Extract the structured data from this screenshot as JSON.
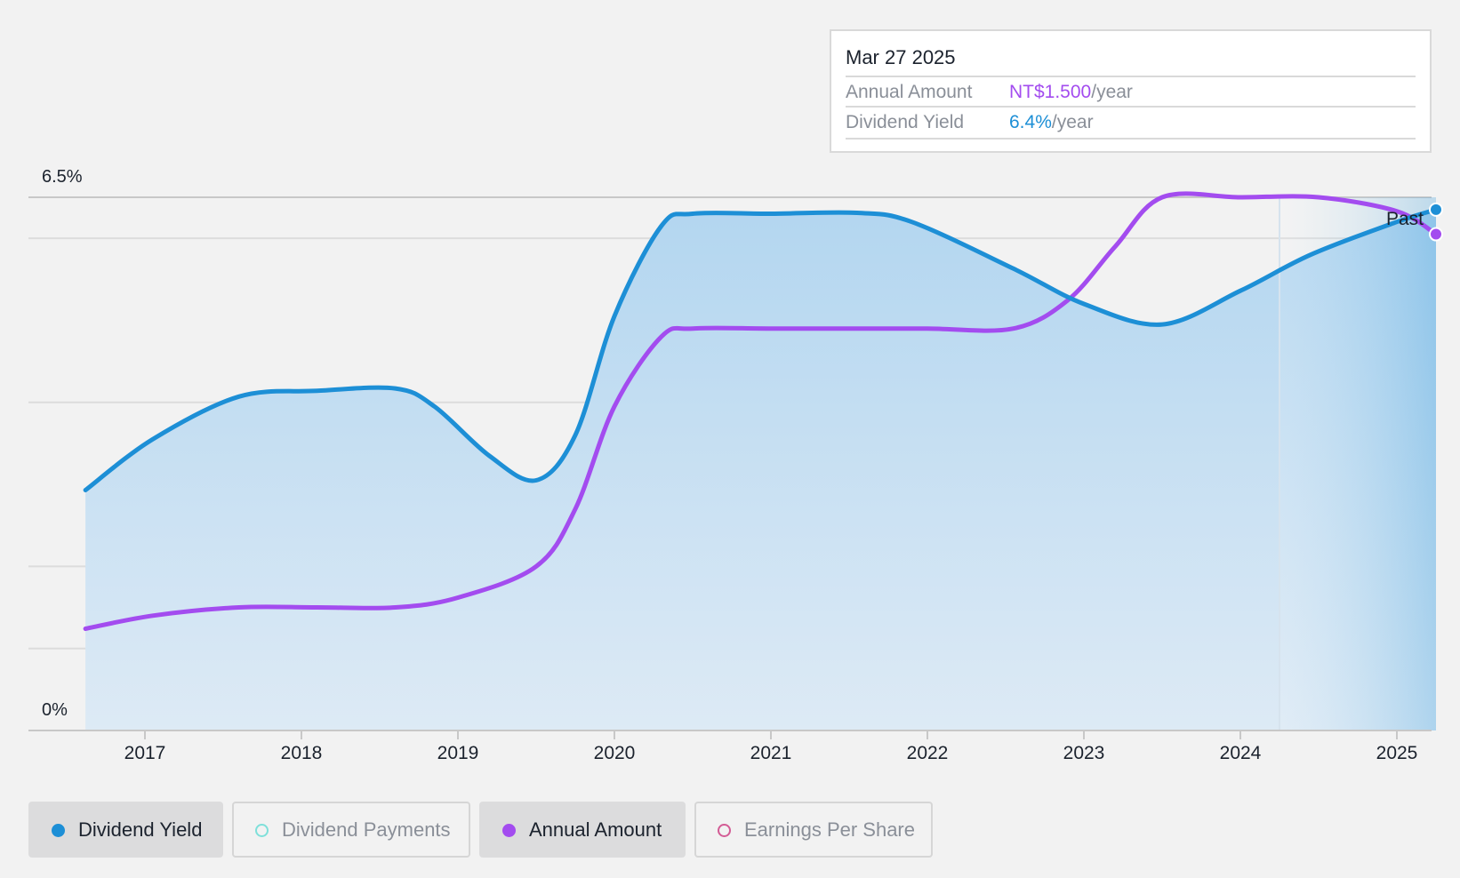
{
  "tooltip": {
    "date": "Mar 27 2025",
    "rows": [
      {
        "label": "Annual Amount",
        "value": "NT$1.500",
        "unit": "/year"
      },
      {
        "label": "Dividend Yield",
        "value": "6.4%",
        "unit": "/year"
      }
    ]
  },
  "legend": [
    {
      "label": "Dividend Yield",
      "color": "#1d8fd6",
      "active": true,
      "filled": true
    },
    {
      "label": "Dividend Payments",
      "color": "#7fe0da",
      "active": false,
      "filled": false
    },
    {
      "label": "Annual Amount",
      "color": "#a34cef",
      "active": true,
      "filled": true
    },
    {
      "label": "Earnings Per Share",
      "color": "#d35c95",
      "active": false,
      "filled": false
    }
  ],
  "chart_data": {
    "type": "line",
    "y_label_top": "6.5%",
    "y_label_bottom": "0%",
    "ylim": [
      0,
      6.5
    ],
    "xlim": [
      2016.4,
      2025.25
    ],
    "x_ticks": [
      "2017",
      "2018",
      "2019",
      "2020",
      "2021",
      "2022",
      "2023",
      "2024",
      "2025"
    ],
    "region_label": "Past",
    "region_start": 2024.25,
    "colors": {
      "yield": "#1d8fd6",
      "amount": "#a34cef",
      "fill": "#bcdcf3"
    },
    "series": [
      {
        "name": "Dividend Yield",
        "key": "yield",
        "points": [
          [
            2016.62,
            2.93
          ],
          [
            2017.05,
            3.55
          ],
          [
            2017.6,
            4.07
          ],
          [
            2018.1,
            4.14
          ],
          [
            2018.6,
            4.17
          ],
          [
            2018.85,
            3.95
          ],
          [
            2019.2,
            3.35
          ],
          [
            2019.5,
            3.05
          ],
          [
            2019.75,
            3.6
          ],
          [
            2020.0,
            5.05
          ],
          [
            2020.3,
            6.15
          ],
          [
            2020.5,
            6.3
          ],
          [
            2021.0,
            6.3
          ],
          [
            2021.55,
            6.31
          ],
          [
            2021.9,
            6.2
          ],
          [
            2022.55,
            5.63
          ],
          [
            2023.0,
            5.2
          ],
          [
            2023.5,
            4.95
          ],
          [
            2024.0,
            5.36
          ],
          [
            2024.45,
            5.8
          ],
          [
            2025.0,
            6.2
          ],
          [
            2025.25,
            6.35
          ]
        ]
      },
      {
        "name": "Annual Amount",
        "key": "amount",
        "points": [
          [
            2016.62,
            1.24
          ],
          [
            2017.05,
            1.4
          ],
          [
            2017.6,
            1.5
          ],
          [
            2018.1,
            1.5
          ],
          [
            2018.6,
            1.5
          ],
          [
            2019.0,
            1.62
          ],
          [
            2019.5,
            2.0
          ],
          [
            2019.75,
            2.7
          ],
          [
            2020.0,
            3.95
          ],
          [
            2020.3,
            4.8
          ],
          [
            2020.5,
            4.9
          ],
          [
            2021.0,
            4.9
          ],
          [
            2021.5,
            4.9
          ],
          [
            2022.0,
            4.9
          ],
          [
            2022.55,
            4.9
          ],
          [
            2022.9,
            5.25
          ],
          [
            2023.2,
            5.9
          ],
          [
            2023.5,
            6.5
          ],
          [
            2024.0,
            6.5
          ],
          [
            2024.5,
            6.5
          ],
          [
            2025.0,
            6.33
          ],
          [
            2025.25,
            6.05
          ]
        ]
      }
    ]
  }
}
